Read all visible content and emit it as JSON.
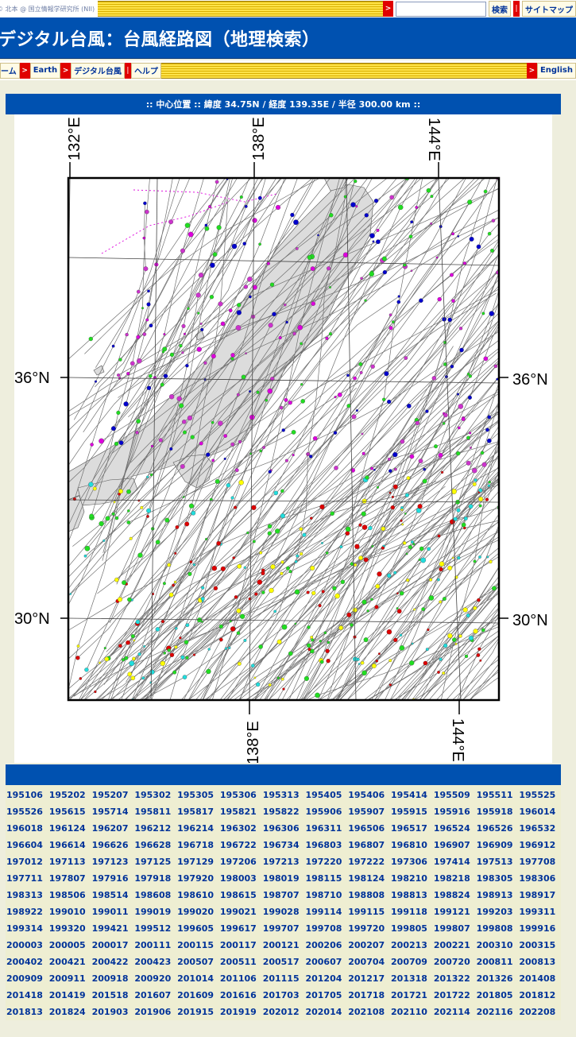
{
  "topbar": {
    "credit": "© 北本 @ 国立情報学研究所 (NII)",
    "arrow": ">",
    "separator": "|",
    "search_button": "検索",
    "sitemap": "サイトマップ"
  },
  "title": "デジタル台風：台風経路図（地理検索）",
  "nav": {
    "home": "ーム",
    "earth": "Earth",
    "digital_typhoon": "デジタル台風",
    "help": "ヘルプ",
    "english": "English"
  },
  "info": ":: 中心位置 :: 緯度 34.75N / 経度 139.35E / 半径 300.00 km ::",
  "map": {
    "lon_top_labels": [
      "132°E",
      "138°E",
      "144°E"
    ],
    "lon_bottom_labels": [
      "138°E",
      "144°E"
    ],
    "lat_left_labels": [
      "36°N",
      "30°N"
    ],
    "lat_right_labels": [
      "36°N",
      "30°N"
    ],
    "colors": {
      "land": "#dcdcdc",
      "sea": "#ffffff",
      "track": "#707070",
      "marker_red": "#dd0000",
      "marker_cyan": "#22dddd",
      "marker_yellow": "#ffff00",
      "marker_green": "#22dd22",
      "marker_blue": "#0000cc",
      "marker_magenta": "#dd00dd",
      "marker_purple": "#cc33cc"
    }
  },
  "typhoon_ids": [
    "195106",
    "195202",
    "195207",
    "195302",
    "195305",
    "195306",
    "195313",
    "195405",
    "195406",
    "195414",
    "195509",
    "195511",
    "195525",
    "195526",
    "195615",
    "195714",
    "195811",
    "195817",
    "195821",
    "195822",
    "195906",
    "195907",
    "195915",
    "195916",
    "195918",
    "196014",
    "196018",
    "196124",
    "196207",
    "196212",
    "196214",
    "196302",
    "196306",
    "196311",
    "196506",
    "196517",
    "196524",
    "196526",
    "196532",
    "196604",
    "196614",
    "196626",
    "196628",
    "196718",
    "196722",
    "196734",
    "196803",
    "196807",
    "196810",
    "196907",
    "196909",
    "196912",
    "197012",
    "197113",
    "197123",
    "197125",
    "197129",
    "197206",
    "197213",
    "197220",
    "197222",
    "197306",
    "197414",
    "197513",
    "197708",
    "197711",
    "197807",
    "197916",
    "197918",
    "197920",
    "198003",
    "198019",
    "198115",
    "198124",
    "198210",
    "198218",
    "198305",
    "198306",
    "198313",
    "198506",
    "198514",
    "198608",
    "198610",
    "198615",
    "198707",
    "198710",
    "198808",
    "198813",
    "198824",
    "198913",
    "198917",
    "198922",
    "199010",
    "199011",
    "199019",
    "199020",
    "199021",
    "199028",
    "199114",
    "199115",
    "199118",
    "199121",
    "199203",
    "199311",
    "199314",
    "199320",
    "199421",
    "199512",
    "199605",
    "199617",
    "199707",
    "199708",
    "199720",
    "199805",
    "199807",
    "199808",
    "199916",
    "200003",
    "200005",
    "200017",
    "200111",
    "200115",
    "200117",
    "200121",
    "200206",
    "200207",
    "200213",
    "200221",
    "200310",
    "200315",
    "200402",
    "200421",
    "200422",
    "200423",
    "200507",
    "200511",
    "200517",
    "200607",
    "200704",
    "200709",
    "200720",
    "200811",
    "200813",
    "200909",
    "200911",
    "200918",
    "200920",
    "201014",
    "201106",
    "201115",
    "201204",
    "201217",
    "201318",
    "201322",
    "201326",
    "201408",
    "201418",
    "201419",
    "201518",
    "201607",
    "201609",
    "201616",
    "201703",
    "201705",
    "201718",
    "201721",
    "201722",
    "201805",
    "201812",
    "201813",
    "201824",
    "201903",
    "201906",
    "201915",
    "201919",
    "202012",
    "202014",
    "202108",
    "202110",
    "202114",
    "202116",
    "202208"
  ]
}
